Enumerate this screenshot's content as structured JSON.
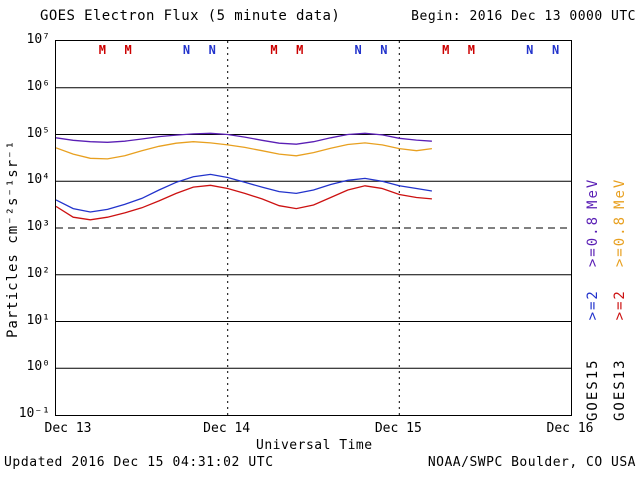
{
  "header": {
    "title": "GOES Electron Flux (5 minute data)",
    "begin": "Begin: 2016 Dec 13 0000 UTC"
  },
  "footer": {
    "updated": "Updated 2016 Dec 15 04:31:02 UTC",
    "credit": "NOAA/SWPC Boulder, CO USA"
  },
  "axes": {
    "y_label": "Particles cm⁻²s⁻¹sr⁻¹",
    "x_label": "Universal Time",
    "y_ticks": [
      "10⁷",
      "10⁶",
      "10⁵",
      "10⁴",
      "10³",
      "10²",
      "10¹",
      "10⁰",
      "10⁻¹"
    ],
    "x_ticks": [
      "Dec 13",
      "Dec 14",
      "Dec 15",
      "Dec 16"
    ]
  },
  "legend": {
    "unit": "MeV",
    "columns": [
      {
        "satellite": "GOES15",
        "ch2_label": ">=2",
        "ch2_color": "#2233cc",
        "ch08_label": ">=0.8",
        "ch08_color": "#5a1fb5"
      },
      {
        "satellite": "GOES13",
        "ch2_label": ">=2",
        "ch2_color": "#cc1111",
        "ch08_label": ">=0.8",
        "ch08_color": "#e8a020"
      }
    ]
  },
  "colors": {
    "marker_m": "#cc0000",
    "marker_n": "#2233cc",
    "axis": "#000000",
    "background": "#ffffff"
  },
  "chart_data": {
    "type": "line",
    "title": "GOES Electron Flux (5 minute data)",
    "xlabel": "Universal Time",
    "ylabel": "Particles cm⁻²s⁻¹sr⁻¹",
    "y_scale": "log10",
    "ylim": [
      0.1,
      10000000
    ],
    "x_range_days": [
      0,
      3
    ],
    "x_tick_labels": [
      "Dec 13",
      "Dec 14",
      "Dec 15",
      "Dec 16"
    ],
    "threshold_line": 1000,
    "grid": "solid horizontal line each decade, dashed line at 10^3 threshold, dotted vertical lines at day boundaries",
    "legend_position": "right margin, rotated",
    "x_days": [
      0,
      0.1,
      0.2,
      0.3,
      0.4,
      0.5,
      0.6,
      0.7,
      0.8,
      0.9,
      1.0,
      1.1,
      1.2,
      1.3,
      1.4,
      1.5,
      1.6,
      1.7,
      1.8,
      1.9,
      2.0,
      2.1,
      2.19
    ],
    "series": [
      {
        "name": "GOES15 >=0.8 MeV",
        "color": "#5a1fb5",
        "values": [
          85000,
          75000,
          70000,
          68000,
          72000,
          80000,
          90000,
          97000,
          103000,
          106000,
          100000,
          88000,
          75000,
          65000,
          62000,
          70000,
          85000,
          100000,
          106000,
          98000,
          83000,
          76000,
          72000
        ]
      },
      {
        "name": "GOES13 >=0.8 MeV",
        "color": "#e8a020",
        "values": [
          52000,
          38000,
          31000,
          30000,
          35000,
          45000,
          56000,
          65000,
          70000,
          66000,
          60000,
          53000,
          45000,
          38000,
          35000,
          41000,
          51000,
          61000,
          66000,
          60000,
          50000,
          45000,
          50000
        ]
      },
      {
        "name": "GOES15 >=2 MeV",
        "color": "#2233cc",
        "values": [
          4000,
          2600,
          2200,
          2500,
          3200,
          4300,
          6500,
          9500,
          12500,
          14000,
          12000,
          9500,
          7500,
          6000,
          5500,
          6500,
          8500,
          10500,
          11500,
          10000,
          8000,
          7000,
          6200
        ]
      },
      {
        "name": "GOES13 >=2 MeV",
        "color": "#cc1111",
        "values": [
          2900,
          1700,
          1500,
          1700,
          2100,
          2700,
          3800,
          5500,
          7500,
          8200,
          7000,
          5500,
          4200,
          3000,
          2600,
          3100,
          4500,
          6500,
          8000,
          7000,
          5200,
          4500,
          4200
        ]
      }
    ],
    "markers": [
      {
        "label": "M",
        "t_days": 0.27
      },
      {
        "label": "M",
        "t_days": 0.42
      },
      {
        "label": "N",
        "t_days": 0.76
      },
      {
        "label": "N",
        "t_days": 0.91
      },
      {
        "label": "M",
        "t_days": 1.27
      },
      {
        "label": "M",
        "t_days": 1.42
      },
      {
        "label": "N",
        "t_days": 1.76
      },
      {
        "label": "N",
        "t_days": 1.91
      },
      {
        "label": "M",
        "t_days": 2.27
      },
      {
        "label": "M",
        "t_days": 2.42
      },
      {
        "label": "N",
        "t_days": 2.76
      },
      {
        "label": "N",
        "t_days": 2.91
      }
    ]
  }
}
